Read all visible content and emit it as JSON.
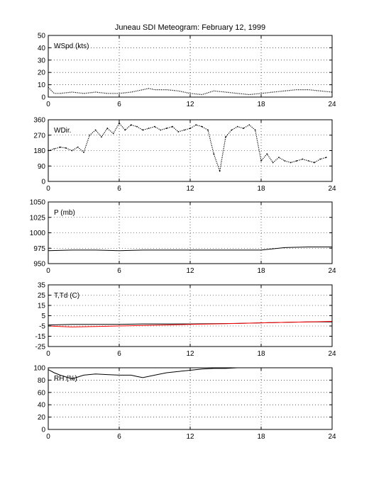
{
  "figure": {
    "title": "Juneau SDI Meteogram:  February 12, 1999"
  },
  "colors": {
    "series_primary": "#000000",
    "series_dewpoint": "#ff0000",
    "grid": "#000000",
    "background": "#ffffff"
  },
  "chart_data": [
    {
      "type": "line",
      "label": "WSpd (kts)",
      "ylim": [
        0,
        50
      ],
      "yticks": [
        0,
        10,
        20,
        30,
        40,
        50
      ],
      "xlim": [
        0,
        24
      ],
      "xticks": [
        0,
        6,
        12,
        18,
        24
      ],
      "grid": true,
      "series": [
        {
          "color": "#000000",
          "style": "dotted",
          "x": [
            0,
            0.5,
            1,
            2,
            3,
            4,
            5,
            6,
            7,
            8,
            8.5,
            9,
            10,
            11,
            12,
            13,
            14,
            15,
            16,
            17,
            18,
            19,
            20,
            21,
            22,
            23,
            24
          ],
          "y": [
            8,
            3,
            3,
            4,
            3,
            4,
            3,
            3,
            4,
            6,
            7,
            6,
            6,
            5,
            3,
            2,
            5,
            4,
            3,
            2,
            3,
            4,
            5,
            6,
            6,
            5,
            4
          ]
        }
      ]
    },
    {
      "type": "scatter",
      "label": "WDir.",
      "ylim": [
        0,
        360
      ],
      "yticks": [
        0,
        90,
        180,
        270,
        360
      ],
      "xlim": [
        0,
        24
      ],
      "xticks": [
        0,
        6,
        12,
        18,
        24
      ],
      "grid": true,
      "series": [
        {
          "color": "#000000",
          "style": "dotted",
          "x": [
            0,
            0.5,
            1,
            1.5,
            2,
            2.5,
            3,
            3.5,
            4,
            4.5,
            5,
            5.5,
            6,
            6.5,
            7,
            7.5,
            8,
            8.5,
            9,
            9.5,
            10,
            10.5,
            11,
            11.5,
            12,
            12.5,
            13,
            13.5,
            14,
            14.5,
            15,
            15.5,
            16,
            16.5,
            17,
            17.5,
            18,
            18.5,
            19,
            19.5,
            20,
            20.5,
            21,
            21.5,
            22,
            22.5,
            23,
            23.5
          ],
          "y": [
            180,
            190,
            200,
            195,
            180,
            200,
            170,
            270,
            300,
            260,
            310,
            280,
            340,
            300,
            330,
            320,
            300,
            310,
            320,
            300,
            310,
            320,
            290,
            300,
            310,
            330,
            320,
            300,
            160,
            60,
            260,
            300,
            320,
            310,
            330,
            300,
            120,
            160,
            110,
            140,
            120,
            110,
            120,
            130,
            120,
            110,
            130,
            140
          ]
        }
      ]
    },
    {
      "type": "line",
      "label": "P (mb)",
      "ylim": [
        950,
        1050
      ],
      "yticks": [
        950,
        975,
        1000,
        1025,
        1050
      ],
      "xlim": [
        0,
        24
      ],
      "xticks": [
        0,
        6,
        12,
        18,
        24
      ],
      "grid": true,
      "series": [
        {
          "color": "#000000",
          "style": "solid",
          "x": [
            0,
            2,
            4,
            6,
            8,
            10,
            12,
            14,
            16,
            18,
            19,
            20,
            22,
            24
          ],
          "y": [
            971,
            972,
            972,
            971,
            972,
            972,
            972,
            972,
            972,
            972,
            974,
            976,
            977,
            977
          ]
        }
      ]
    },
    {
      "type": "line",
      "label": "T,Td (C)",
      "ylim": [
        -25,
        35
      ],
      "yticks": [
        -25,
        -15,
        -5,
        5,
        15,
        25,
        35
      ],
      "xlim": [
        0,
        24
      ],
      "xticks": [
        0,
        6,
        12,
        18,
        24
      ],
      "grid": true,
      "series": [
        {
          "color": "#000000",
          "style": "solid",
          "x": [
            0,
            2,
            4,
            6,
            8,
            10,
            12,
            14,
            16,
            18,
            20,
            22,
            24
          ],
          "y": [
            -4,
            -3.5,
            -3.5,
            -3.5,
            -3,
            -3,
            -3,
            -2.8,
            -2.5,
            -2,
            -1.5,
            -1,
            -1
          ]
        },
        {
          "color": "#ff0000",
          "style": "solid",
          "x": [
            0,
            1,
            2,
            4,
            6,
            8,
            10,
            12,
            14,
            16,
            18,
            20,
            22,
            24
          ],
          "y": [
            -5,
            -5.5,
            -6,
            -5.5,
            -5,
            -4.5,
            -4,
            -3.5,
            -3,
            -2.5,
            -2,
            -1.5,
            -1,
            -0.5
          ]
        }
      ]
    },
    {
      "type": "line",
      "label": "RH (%)",
      "ylim": [
        0,
        100
      ],
      "yticks": [
        0,
        20,
        40,
        60,
        80,
        100
      ],
      "xlim": [
        0,
        24
      ],
      "xticks": [
        0,
        6,
        12,
        18,
        24
      ],
      "grid": true,
      "series": [
        {
          "color": "#000000",
          "style": "solid",
          "x": [
            0,
            0.5,
            1,
            1.5,
            2,
            2.5,
            3,
            4,
            5,
            6,
            7,
            7.5,
            8,
            9,
            10,
            11,
            12,
            13,
            14,
            15,
            16
          ],
          "y": [
            97,
            92,
            88,
            85,
            82,
            85,
            88,
            90,
            89,
            88,
            88,
            86,
            84,
            88,
            92,
            94,
            96,
            98,
            99,
            99,
            100
          ]
        }
      ]
    }
  ]
}
